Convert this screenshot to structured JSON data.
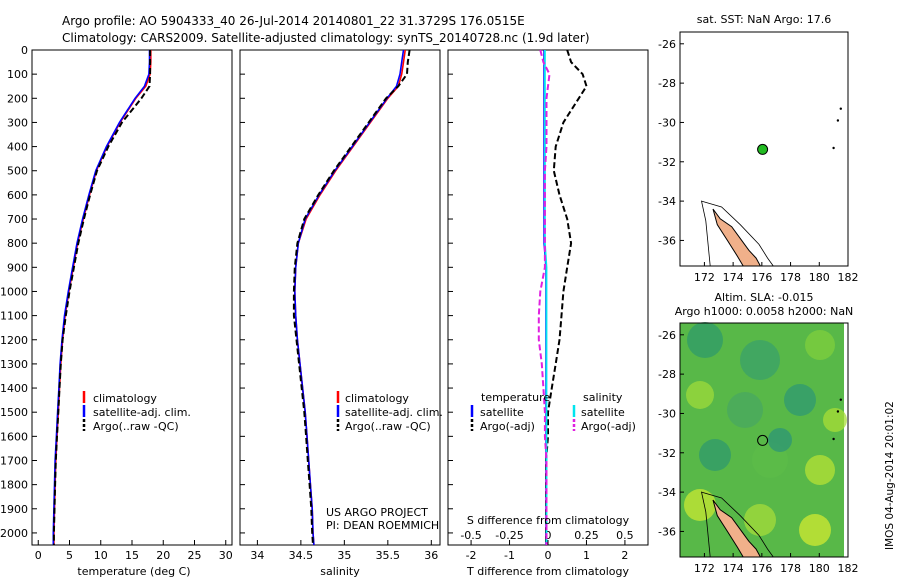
{
  "header": {
    "title_line1": "Argo profile: AO 5904333_40 26-Jul-2014 20140801_22 31.3729S 176.0515E",
    "title_line2": "Climatology: CARS2009. Satellite-adjusted climatology: synTS_20140728.nc (1.9d later)"
  },
  "colors": {
    "climatology": "#ff0000",
    "satellite": "#0000ff",
    "argo": "#000000",
    "salinity_satellite": "#00e5ee",
    "salinity_argo": "#e020e0",
    "land": "#f0b08a",
    "float_marker": "#22bb22"
  },
  "chart_data": [
    {
      "id": "temperature",
      "type": "line",
      "xlabel": "temperature (deg C)",
      "xlim": [
        -1,
        31
      ],
      "ylim": [
        0,
        2050
      ],
      "y_inverted": true,
      "xticks": [
        0,
        5,
        10,
        15,
        20,
        25,
        30
      ],
      "yticks": [
        0,
        100,
        200,
        300,
        400,
        500,
        600,
        700,
        800,
        900,
        1000,
        1100,
        1200,
        1300,
        1400,
        1500,
        1600,
        1700,
        1800,
        1900,
        2000
      ],
      "legend": [
        "climatology",
        "satellite-adj. clim.",
        "Argo(..raw -QC)"
      ],
      "y": [
        0,
        50,
        100,
        150,
        200,
        300,
        400,
        500,
        600,
        700,
        800,
        900,
        1000,
        1100,
        1200,
        1300,
        1400,
        1500,
        1600,
        1700,
        1800,
        1900,
        2000,
        2050
      ],
      "series": [
        {
          "name": "climatology",
          "color": "#ff0000",
          "values": [
            18.0,
            18.0,
            17.9,
            17.2,
            15.6,
            13.1,
            11.0,
            9.3,
            8.2,
            7.2,
            6.3,
            5.6,
            4.9,
            4.3,
            3.9,
            3.6,
            3.4,
            3.2,
            3.0,
            2.8,
            2.7,
            2.6,
            2.5,
            2.5
          ]
        },
        {
          "name": "satellite-adj. clim.",
          "color": "#0000ff",
          "values": [
            17.8,
            17.8,
            17.7,
            17.0,
            15.5,
            13.0,
            10.9,
            9.2,
            8.1,
            7.1,
            6.2,
            5.5,
            4.8,
            4.2,
            3.8,
            3.5,
            3.3,
            3.1,
            2.9,
            2.7,
            2.6,
            2.5,
            2.4,
            2.4
          ]
        },
        {
          "name": "Argo(..raw -QC)",
          "color": "#000000",
          "dashed": true,
          "values": [
            17.9,
            17.9,
            17.9,
            17.8,
            16.5,
            13.4,
            11.2,
            9.4,
            8.3,
            7.3,
            6.4,
            5.7,
            5.0,
            4.4,
            3.9,
            3.6,
            3.4,
            3.2,
            3.0,
            2.8,
            2.7,
            2.6,
            2.5,
            2.5
          ]
        }
      ]
    },
    {
      "id": "salinity",
      "type": "line",
      "xlabel": "salinity",
      "xlim": [
        33.8,
        36.1
      ],
      "ylim": [
        0,
        2050
      ],
      "y_inverted": true,
      "xticks": [
        34,
        34.5,
        35,
        35.5,
        36
      ],
      "legend": [
        "climatology",
        "satellite-adj. clim.",
        "Argo(..raw -QC)"
      ],
      "y": [
        0,
        50,
        100,
        150,
        200,
        300,
        400,
        500,
        600,
        700,
        800,
        900,
        1000,
        1100,
        1200,
        1300,
        1400,
        1500,
        1600,
        1700,
        1800,
        1900,
        2000,
        2050
      ],
      "series": [
        {
          "name": "climatology",
          "color": "#ff0000",
          "values": [
            35.7,
            35.68,
            35.66,
            35.62,
            35.5,
            35.3,
            35.1,
            34.9,
            34.72,
            34.56,
            34.47,
            34.44,
            34.43,
            34.44,
            34.46,
            34.49,
            34.52,
            34.55,
            34.57,
            34.59,
            34.61,
            34.63,
            34.64,
            34.65
          ]
        },
        {
          "name": "satellite-adj. clim.",
          "color": "#0000ff",
          "values": [
            35.68,
            35.66,
            35.64,
            35.6,
            35.49,
            35.29,
            35.09,
            34.89,
            34.71,
            34.55,
            34.47,
            34.44,
            34.43,
            34.44,
            34.46,
            34.49,
            34.52,
            34.55,
            34.57,
            34.59,
            34.61,
            34.63,
            34.64,
            34.65
          ]
        },
        {
          "name": "Argo(..raw -QC)",
          "color": "#000000",
          "dashed": true,
          "values": [
            35.75,
            35.73,
            35.72,
            35.62,
            35.48,
            35.28,
            35.08,
            34.88,
            34.7,
            34.54,
            34.46,
            34.43,
            34.42,
            34.42,
            34.45,
            34.48,
            34.51,
            34.54,
            34.56,
            34.58,
            34.6,
            34.62,
            34.63,
            34.64
          ]
        }
      ]
    },
    {
      "id": "difference",
      "type": "line",
      "xlabel": "T difference from climatology",
      "xlabel_top": "S difference from climatology",
      "xlim": [
        -2.6,
        2.6
      ],
      "ylim": [
        0,
        2050
      ],
      "y_inverted": true,
      "xticks_T": [
        -2,
        -1,
        0,
        1,
        2
      ],
      "xticks_S": [
        "-0.5",
        "-0.25",
        "0",
        "0.25",
        "0.5"
      ],
      "legend_headers": [
        "temperature",
        "salinity"
      ],
      "legend": [
        "satellite",
        "Argo(-adj)",
        "satellite",
        "Argo(-adj)"
      ],
      "y": [
        0,
        50,
        100,
        150,
        200,
        300,
        400,
        500,
        600,
        700,
        800,
        900,
        1000,
        1100,
        1200,
        1300,
        1400,
        1500,
        1600,
        1700,
        1800,
        1900,
        2000,
        2050
      ],
      "series": [
        {
          "name": "satellite",
          "quantity": "temperature",
          "color": "#0000ff",
          "values": [
            -0.1,
            -0.1,
            -0.1,
            -0.1,
            -0.1,
            -0.1,
            -0.1,
            -0.1,
            -0.1,
            -0.1,
            -0.1,
            -0.05,
            -0.05,
            -0.05,
            -0.05,
            -0.05,
            -0.05,
            -0.05,
            -0.05,
            -0.05,
            -0.05,
            -0.05,
            -0.05,
            -0.05
          ]
        },
        {
          "name": "Argo(-adj)",
          "quantity": "temperature",
          "color": "#000000",
          "dashed": true,
          "values": [
            0.5,
            0.6,
            0.9,
            1.0,
            0.8,
            0.4,
            0.2,
            0.15,
            0.3,
            0.5,
            0.6,
            0.5,
            0.4,
            0.35,
            0.3,
            0.2,
            0.1,
            0.0,
            0.0,
            -0.05,
            -0.05,
            -0.05,
            -0.05,
            -0.05
          ]
        },
        {
          "name": "satellite",
          "quantity": "salinity",
          "color": "#00e5ee",
          "values": [
            -0.02,
            -0.02,
            -0.02,
            -0.02,
            -0.02,
            -0.02,
            -0.02,
            -0.02,
            -0.02,
            -0.02,
            -0.02,
            -0.01,
            -0.01,
            -0.01,
            -0.01,
            -0.01,
            -0.01,
            -0.01,
            -0.01,
            -0.01,
            -0.01,
            -0.01,
            -0.01,
            -0.01
          ]
        },
        {
          "name": "Argo(-adj)",
          "quantity": "salinity",
          "color": "#e020e0",
          "dashed": true,
          "values": [
            -0.05,
            -0.03,
            0.01,
            0.0,
            -0.01,
            -0.01,
            -0.01,
            -0.02,
            -0.02,
            -0.02,
            -0.02,
            -0.02,
            -0.05,
            -0.06,
            -0.06,
            -0.04,
            -0.03,
            -0.02,
            -0.02,
            -0.01,
            -0.01,
            -0.01,
            -0.01,
            -0.01
          ]
        }
      ]
    },
    {
      "id": "sst_map",
      "type": "scatter",
      "title": "sat. SST: NaN Argo: 17.6",
      "xlim": [
        170.3,
        182
      ],
      "ylim": [
        -37.3,
        -25.4
      ],
      "xticks": [
        172,
        174,
        176,
        178,
        180,
        182
      ],
      "yticks": [
        -26,
        -28,
        -30,
        -32,
        -34,
        -36
      ],
      "points": [
        {
          "x": 176.05,
          "y": -31.37
        }
      ]
    },
    {
      "id": "sla_map",
      "type": "heatmap",
      "title_line1": "Altim. SLA: -0.015",
      "title_line2": "Argo h1000: 0.0058 h2000: NaN",
      "xlim": [
        170.3,
        182
      ],
      "ylim": [
        -37.3,
        -25.4
      ],
      "xticks": [
        172,
        174,
        176,
        178,
        180,
        182
      ],
      "yticks": [
        -26,
        -28,
        -30,
        -32,
        -34,
        -36
      ],
      "points": [
        {
          "x": 176.05,
          "y": -31.37
        }
      ]
    }
  ],
  "project": {
    "line1": "US ARGO PROJECT",
    "line2": "PI: DEAN ROEMMICH"
  },
  "credit": "IMOS 04-Aug-2014 20:01:02"
}
